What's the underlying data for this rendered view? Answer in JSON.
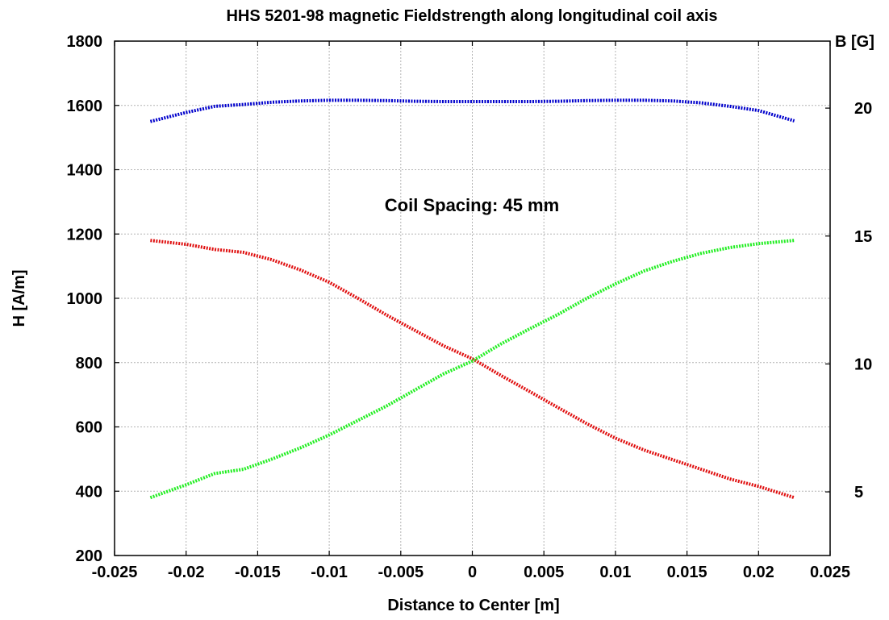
{
  "chart_data": {
    "type": "line",
    "title": "HHS 5201-98 magnetic Fieldstrength along longitudinal coil axis",
    "xlabel": "Distance to Center [m]",
    "ylabel": "H [A/m]",
    "y2label": "B [G]",
    "annotation": "Coil Spacing: 45 mm",
    "xlim": [
      -0.025,
      0.025
    ],
    "ylim": [
      200,
      1800
    ],
    "y2lim": [
      2.513,
      22.619
    ],
    "x_ticks": [
      "-0.025",
      "-0.02",
      "-0.015",
      "-0.01",
      "-0.005",
      "0",
      "0.005",
      "0.01",
      "0.015",
      "0.02",
      "0.025"
    ],
    "y_ticks": [
      "200",
      "400",
      "600",
      "800",
      "1000",
      "1200",
      "1400",
      "1600",
      "1800"
    ],
    "y2_ticks": [
      "5",
      "10",
      "15",
      "20"
    ],
    "grid": true,
    "series": [
      {
        "color": "#0000cc",
        "x": [
          -0.0225,
          -0.02,
          -0.018,
          -0.016,
          -0.014,
          -0.012,
          -0.01,
          -0.008,
          -0.006,
          -0.004,
          -0.002,
          0,
          0.002,
          0.004,
          0.006,
          0.008,
          0.01,
          0.012,
          0.014,
          0.016,
          0.018,
          0.02,
          0.0225
        ],
        "y": [
          1550,
          1578,
          1597,
          1603,
          1610,
          1614,
          1616,
          1616,
          1615,
          1613,
          1612,
          1612,
          1612,
          1612,
          1613,
          1615,
          1616,
          1616,
          1614,
          1608,
          1597,
          1584,
          1552
        ]
      },
      {
        "color": "#e01010",
        "x": [
          -0.0225,
          -0.02,
          -0.018,
          -0.016,
          -0.014,
          -0.012,
          -0.01,
          -0.008,
          -0.006,
          -0.004,
          -0.002,
          0,
          0.002,
          0.004,
          0.006,
          0.008,
          0.01,
          0.012,
          0.014,
          0.016,
          0.018,
          0.02,
          0.0225
        ],
        "y": [
          1180,
          1168,
          1152,
          1143,
          1120,
          1088,
          1050,
          1000,
          948,
          900,
          852,
          812,
          760,
          710,
          660,
          610,
          565,
          528,
          498,
          468,
          438,
          415,
          380
        ]
      },
      {
        "color": "#22ee22",
        "x": [
          -0.0225,
          -0.02,
          -0.018,
          -0.016,
          -0.014,
          -0.012,
          -0.01,
          -0.008,
          -0.006,
          -0.004,
          -0.002,
          0,
          0.002,
          0.004,
          0.006,
          0.008,
          0.01,
          0.012,
          0.014,
          0.016,
          0.018,
          0.02,
          0.0225
        ],
        "y": [
          380,
          420,
          455,
          468,
          500,
          535,
          575,
          620,
          665,
          715,
          765,
          805,
          858,
          905,
          950,
          1000,
          1045,
          1085,
          1115,
          1140,
          1158,
          1170,
          1180
        ]
      }
    ]
  }
}
